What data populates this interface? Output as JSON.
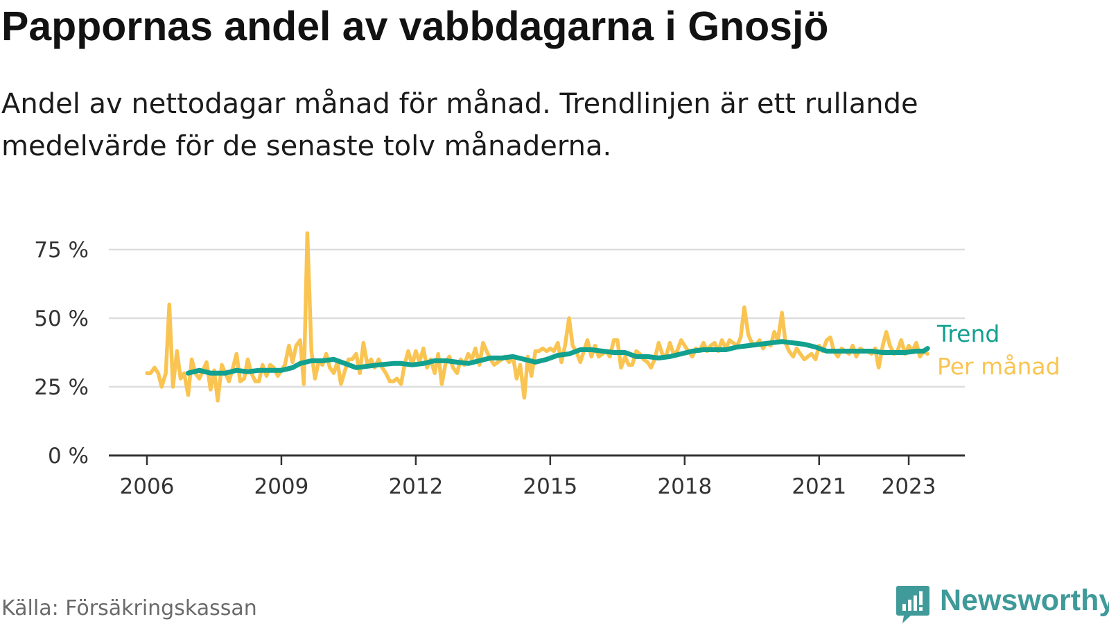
{
  "title": "Pappornas andel av vabbdagarna i Gnosjö",
  "subtitle": "Andel av nettodagar månad för månad. Trendlinjen är ett rullande medelvärde för de senaste tolv månaderna.",
  "source": "Källa: Försäkringskassan",
  "brand": {
    "name": "Newsworthy",
    "icon": "newsworthy-logo-icon",
    "color": "#3f9a99"
  },
  "colors": {
    "trend": "#12a08f",
    "monthly": "#f9c452",
    "grid": "#dddddd",
    "axis": "#333333"
  },
  "chart_data": {
    "type": "line",
    "ylim": [
      0,
      75
    ],
    "y_ticks": [
      {
        "value": 0,
        "label": "0 %"
      },
      {
        "value": 25,
        "label": "25 %"
      },
      {
        "value": 50,
        "label": "50 %"
      },
      {
        "value": 75,
        "label": "75 %"
      }
    ],
    "x_ticks": [
      {
        "value": 2006,
        "label": "2006"
      },
      {
        "value": 2009,
        "label": "2009"
      },
      {
        "value": 2012,
        "label": "2012"
      },
      {
        "value": 2015,
        "label": "2015"
      },
      {
        "value": 2018,
        "label": "2018"
      },
      {
        "value": 2021,
        "label": "2021"
      },
      {
        "value": 2023,
        "label": "2023"
      }
    ],
    "grid": true,
    "legend": "right, at end of lines",
    "series": [
      {
        "name": "Per månad",
        "color": "#f9c452",
        "points": [
          [
            2006.0,
            30
          ],
          [
            2006.08,
            30
          ],
          [
            2006.17,
            32
          ],
          [
            2006.25,
            30
          ],
          [
            2006.33,
            25
          ],
          [
            2006.42,
            30
          ],
          [
            2006.5,
            55
          ],
          [
            2006.58,
            25
          ],
          [
            2006.67,
            38
          ],
          [
            2006.75,
            28
          ],
          [
            2006.83,
            30
          ],
          [
            2006.92,
            22
          ],
          [
            2007.0,
            35
          ],
          [
            2007.08,
            30
          ],
          [
            2007.17,
            28
          ],
          [
            2007.25,
            31
          ],
          [
            2007.33,
            34
          ],
          [
            2007.42,
            24
          ],
          [
            2007.5,
            31
          ],
          [
            2007.58,
            20
          ],
          [
            2007.67,
            33
          ],
          [
            2007.75,
            30
          ],
          [
            2007.83,
            27
          ],
          [
            2007.92,
            32
          ],
          [
            2008.0,
            37
          ],
          [
            2008.08,
            27
          ],
          [
            2008.17,
            28
          ],
          [
            2008.25,
            35
          ],
          [
            2008.33,
            30
          ],
          [
            2008.42,
            27
          ],
          [
            2008.5,
            27
          ],
          [
            2008.58,
            33
          ],
          [
            2008.67,
            29
          ],
          [
            2008.75,
            33
          ],
          [
            2008.83,
            32
          ],
          [
            2008.92,
            29
          ],
          [
            2009.0,
            31
          ],
          [
            2009.08,
            33
          ],
          [
            2009.17,
            40
          ],
          [
            2009.25,
            34
          ],
          [
            2009.33,
            40
          ],
          [
            2009.42,
            42
          ],
          [
            2009.5,
            26
          ],
          [
            2009.58,
            81
          ],
          [
            2009.67,
            38
          ],
          [
            2009.75,
            28
          ],
          [
            2009.83,
            34
          ],
          [
            2009.92,
            33
          ],
          [
            2010.0,
            37
          ],
          [
            2010.08,
            32
          ],
          [
            2010.17,
            30
          ],
          [
            2010.25,
            34
          ],
          [
            2010.33,
            26
          ],
          [
            2010.42,
            31
          ],
          [
            2010.5,
            35
          ],
          [
            2010.58,
            35
          ],
          [
            2010.67,
            37
          ],
          [
            2010.75,
            30
          ],
          [
            2010.83,
            41
          ],
          [
            2010.92,
            33
          ],
          [
            2011.0,
            35
          ],
          [
            2011.08,
            32
          ],
          [
            2011.17,
            35
          ],
          [
            2011.25,
            32
          ],
          [
            2011.33,
            30
          ],
          [
            2011.42,
            27
          ],
          [
            2011.5,
            27
          ],
          [
            2011.58,
            28
          ],
          [
            2011.67,
            26
          ],
          [
            2011.75,
            33
          ],
          [
            2011.83,
            38
          ],
          [
            2011.92,
            33
          ],
          [
            2012.0,
            38
          ],
          [
            2012.08,
            34
          ],
          [
            2012.17,
            39
          ],
          [
            2012.25,
            32
          ],
          [
            2012.33,
            35
          ],
          [
            2012.42,
            30
          ],
          [
            2012.5,
            37
          ],
          [
            2012.58,
            26
          ],
          [
            2012.67,
            34
          ],
          [
            2012.75,
            36
          ],
          [
            2012.83,
            32
          ],
          [
            2012.92,
            30
          ],
          [
            2013.0,
            35
          ],
          [
            2013.08,
            33
          ],
          [
            2013.17,
            37
          ],
          [
            2013.25,
            35
          ],
          [
            2013.33,
            39
          ],
          [
            2013.42,
            33
          ],
          [
            2013.5,
            41
          ],
          [
            2013.58,
            38
          ],
          [
            2013.67,
            35
          ],
          [
            2013.75,
            33
          ],
          [
            2013.83,
            34
          ],
          [
            2013.92,
            35
          ],
          [
            2014.0,
            36
          ],
          [
            2014.08,
            34
          ],
          [
            2014.17,
            36
          ],
          [
            2014.25,
            28
          ],
          [
            2014.33,
            33
          ],
          [
            2014.42,
            21
          ],
          [
            2014.5,
            36
          ],
          [
            2014.58,
            29
          ],
          [
            2014.67,
            38
          ],
          [
            2014.75,
            38
          ],
          [
            2014.83,
            39
          ],
          [
            2014.92,
            38
          ],
          [
            2015.0,
            39
          ],
          [
            2015.08,
            38
          ],
          [
            2015.17,
            41
          ],
          [
            2015.25,
            34
          ],
          [
            2015.33,
            40
          ],
          [
            2015.42,
            50
          ],
          [
            2015.5,
            40
          ],
          [
            2015.58,
            38
          ],
          [
            2015.67,
            34
          ],
          [
            2015.75,
            38
          ],
          [
            2015.83,
            42
          ],
          [
            2015.92,
            36
          ],
          [
            2016.0,
            40
          ],
          [
            2016.08,
            36
          ],
          [
            2016.17,
            37
          ],
          [
            2016.25,
            38
          ],
          [
            2016.33,
            36
          ],
          [
            2016.42,
            42
          ],
          [
            2016.5,
            42
          ],
          [
            2016.58,
            32
          ],
          [
            2016.67,
            36
          ],
          [
            2016.75,
            33
          ],
          [
            2016.83,
            33
          ],
          [
            2016.92,
            38
          ],
          [
            2017.0,
            37
          ],
          [
            2017.08,
            35
          ],
          [
            2017.17,
            34
          ],
          [
            2017.25,
            32
          ],
          [
            2017.33,
            35
          ],
          [
            2017.42,
            41
          ],
          [
            2017.5,
            37
          ],
          [
            2017.58,
            36
          ],
          [
            2017.67,
            41
          ],
          [
            2017.75,
            37
          ],
          [
            2017.83,
            38
          ],
          [
            2017.92,
            42
          ],
          [
            2018.0,
            40
          ],
          [
            2018.08,
            38
          ],
          [
            2018.17,
            36
          ],
          [
            2018.25,
            39
          ],
          [
            2018.33,
            38
          ],
          [
            2018.42,
            41
          ],
          [
            2018.5,
            38
          ],
          [
            2018.58,
            40
          ],
          [
            2018.67,
            41
          ],
          [
            2018.75,
            38
          ],
          [
            2018.83,
            42
          ],
          [
            2018.92,
            39
          ],
          [
            2019.0,
            42
          ],
          [
            2019.08,
            41
          ],
          [
            2019.17,
            40
          ],
          [
            2019.25,
            43
          ],
          [
            2019.33,
            54
          ],
          [
            2019.42,
            44
          ],
          [
            2019.5,
            41
          ],
          [
            2019.58,
            40
          ],
          [
            2019.67,
            42
          ],
          [
            2019.75,
            39
          ],
          [
            2019.83,
            41
          ],
          [
            2019.92,
            40
          ],
          [
            2020.0,
            45
          ],
          [
            2020.08,
            42
          ],
          [
            2020.17,
            52
          ],
          [
            2020.25,
            41
          ],
          [
            2020.33,
            38
          ],
          [
            2020.42,
            36
          ],
          [
            2020.5,
            39
          ],
          [
            2020.58,
            37
          ],
          [
            2020.67,
            35
          ],
          [
            2020.75,
            36
          ],
          [
            2020.83,
            37
          ],
          [
            2020.92,
            35
          ],
          [
            2021.0,
            40
          ],
          [
            2021.08,
            38
          ],
          [
            2021.17,
            42
          ],
          [
            2021.25,
            43
          ],
          [
            2021.33,
            38
          ],
          [
            2021.42,
            36
          ],
          [
            2021.5,
            39
          ],
          [
            2021.58,
            38
          ],
          [
            2021.67,
            37
          ],
          [
            2021.75,
            40
          ],
          [
            2021.83,
            36
          ],
          [
            2021.92,
            39
          ],
          [
            2022.0,
            38
          ],
          [
            2022.08,
            38
          ],
          [
            2022.17,
            37
          ],
          [
            2022.25,
            39
          ],
          [
            2022.33,
            32
          ],
          [
            2022.42,
            40
          ],
          [
            2022.5,
            45
          ],
          [
            2022.58,
            40
          ],
          [
            2022.67,
            37
          ],
          [
            2022.75,
            38
          ],
          [
            2022.83,
            42
          ],
          [
            2022.92,
            37
          ],
          [
            2023.0,
            40
          ],
          [
            2023.08,
            38
          ],
          [
            2023.17,
            41
          ],
          [
            2023.25,
            36
          ],
          [
            2023.33,
            38
          ],
          [
            2023.42,
            37
          ]
        ]
      },
      {
        "name": "Trend",
        "color": "#12a08f",
        "points": [
          [
            2006.92,
            30
          ],
          [
            2007.17,
            31
          ],
          [
            2007.42,
            30
          ],
          [
            2007.75,
            30
          ],
          [
            2008.0,
            31
          ],
          [
            2008.25,
            30.5
          ],
          [
            2008.5,
            31
          ],
          [
            2008.75,
            31
          ],
          [
            2009.0,
            31
          ],
          [
            2009.25,
            32
          ],
          [
            2009.42,
            33.5
          ],
          [
            2009.67,
            34.5
          ],
          [
            2009.92,
            34.5
          ],
          [
            2010.17,
            35
          ],
          [
            2010.42,
            33.5
          ],
          [
            2010.67,
            32
          ],
          [
            2010.92,
            32.5
          ],
          [
            2011.17,
            33
          ],
          [
            2011.5,
            33.5
          ],
          [
            2011.67,
            33.5
          ],
          [
            2011.92,
            33
          ],
          [
            2012.17,
            33.5
          ],
          [
            2012.42,
            34.5
          ],
          [
            2012.67,
            34.5
          ],
          [
            2012.92,
            34
          ],
          [
            2013.17,
            33.5
          ],
          [
            2013.42,
            34.5
          ],
          [
            2013.67,
            35.5
          ],
          [
            2013.92,
            35.5
          ],
          [
            2014.17,
            36
          ],
          [
            2014.42,
            35
          ],
          [
            2014.67,
            34
          ],
          [
            2014.92,
            35
          ],
          [
            2015.17,
            36.5
          ],
          [
            2015.42,
            37
          ],
          [
            2015.67,
            38.5
          ],
          [
            2015.92,
            38.5
          ],
          [
            2016.17,
            38
          ],
          [
            2016.42,
            37.5
          ],
          [
            2016.67,
            37.5
          ],
          [
            2016.92,
            36
          ],
          [
            2017.17,
            36
          ],
          [
            2017.42,
            35.5
          ],
          [
            2017.67,
            36
          ],
          [
            2017.92,
            37
          ],
          [
            2018.17,
            38
          ],
          [
            2018.42,
            38.5
          ],
          [
            2018.67,
            38.5
          ],
          [
            2018.92,
            38.5
          ],
          [
            2019.17,
            39.5
          ],
          [
            2019.42,
            40
          ],
          [
            2019.67,
            40.5
          ],
          [
            2019.92,
            41
          ],
          [
            2020.17,
            41.5
          ],
          [
            2020.42,
            41
          ],
          [
            2020.67,
            40.5
          ],
          [
            2020.92,
            39.5
          ],
          [
            2021.17,
            38
          ],
          [
            2021.42,
            38
          ],
          [
            2021.67,
            38
          ],
          [
            2021.92,
            38
          ],
          [
            2022.17,
            38
          ],
          [
            2022.42,
            37.5
          ],
          [
            2022.67,
            37.5
          ],
          [
            2022.92,
            37.5
          ],
          [
            2023.17,
            38
          ],
          [
            2023.33,
            38
          ],
          [
            2023.42,
            39
          ]
        ]
      }
    ]
  }
}
